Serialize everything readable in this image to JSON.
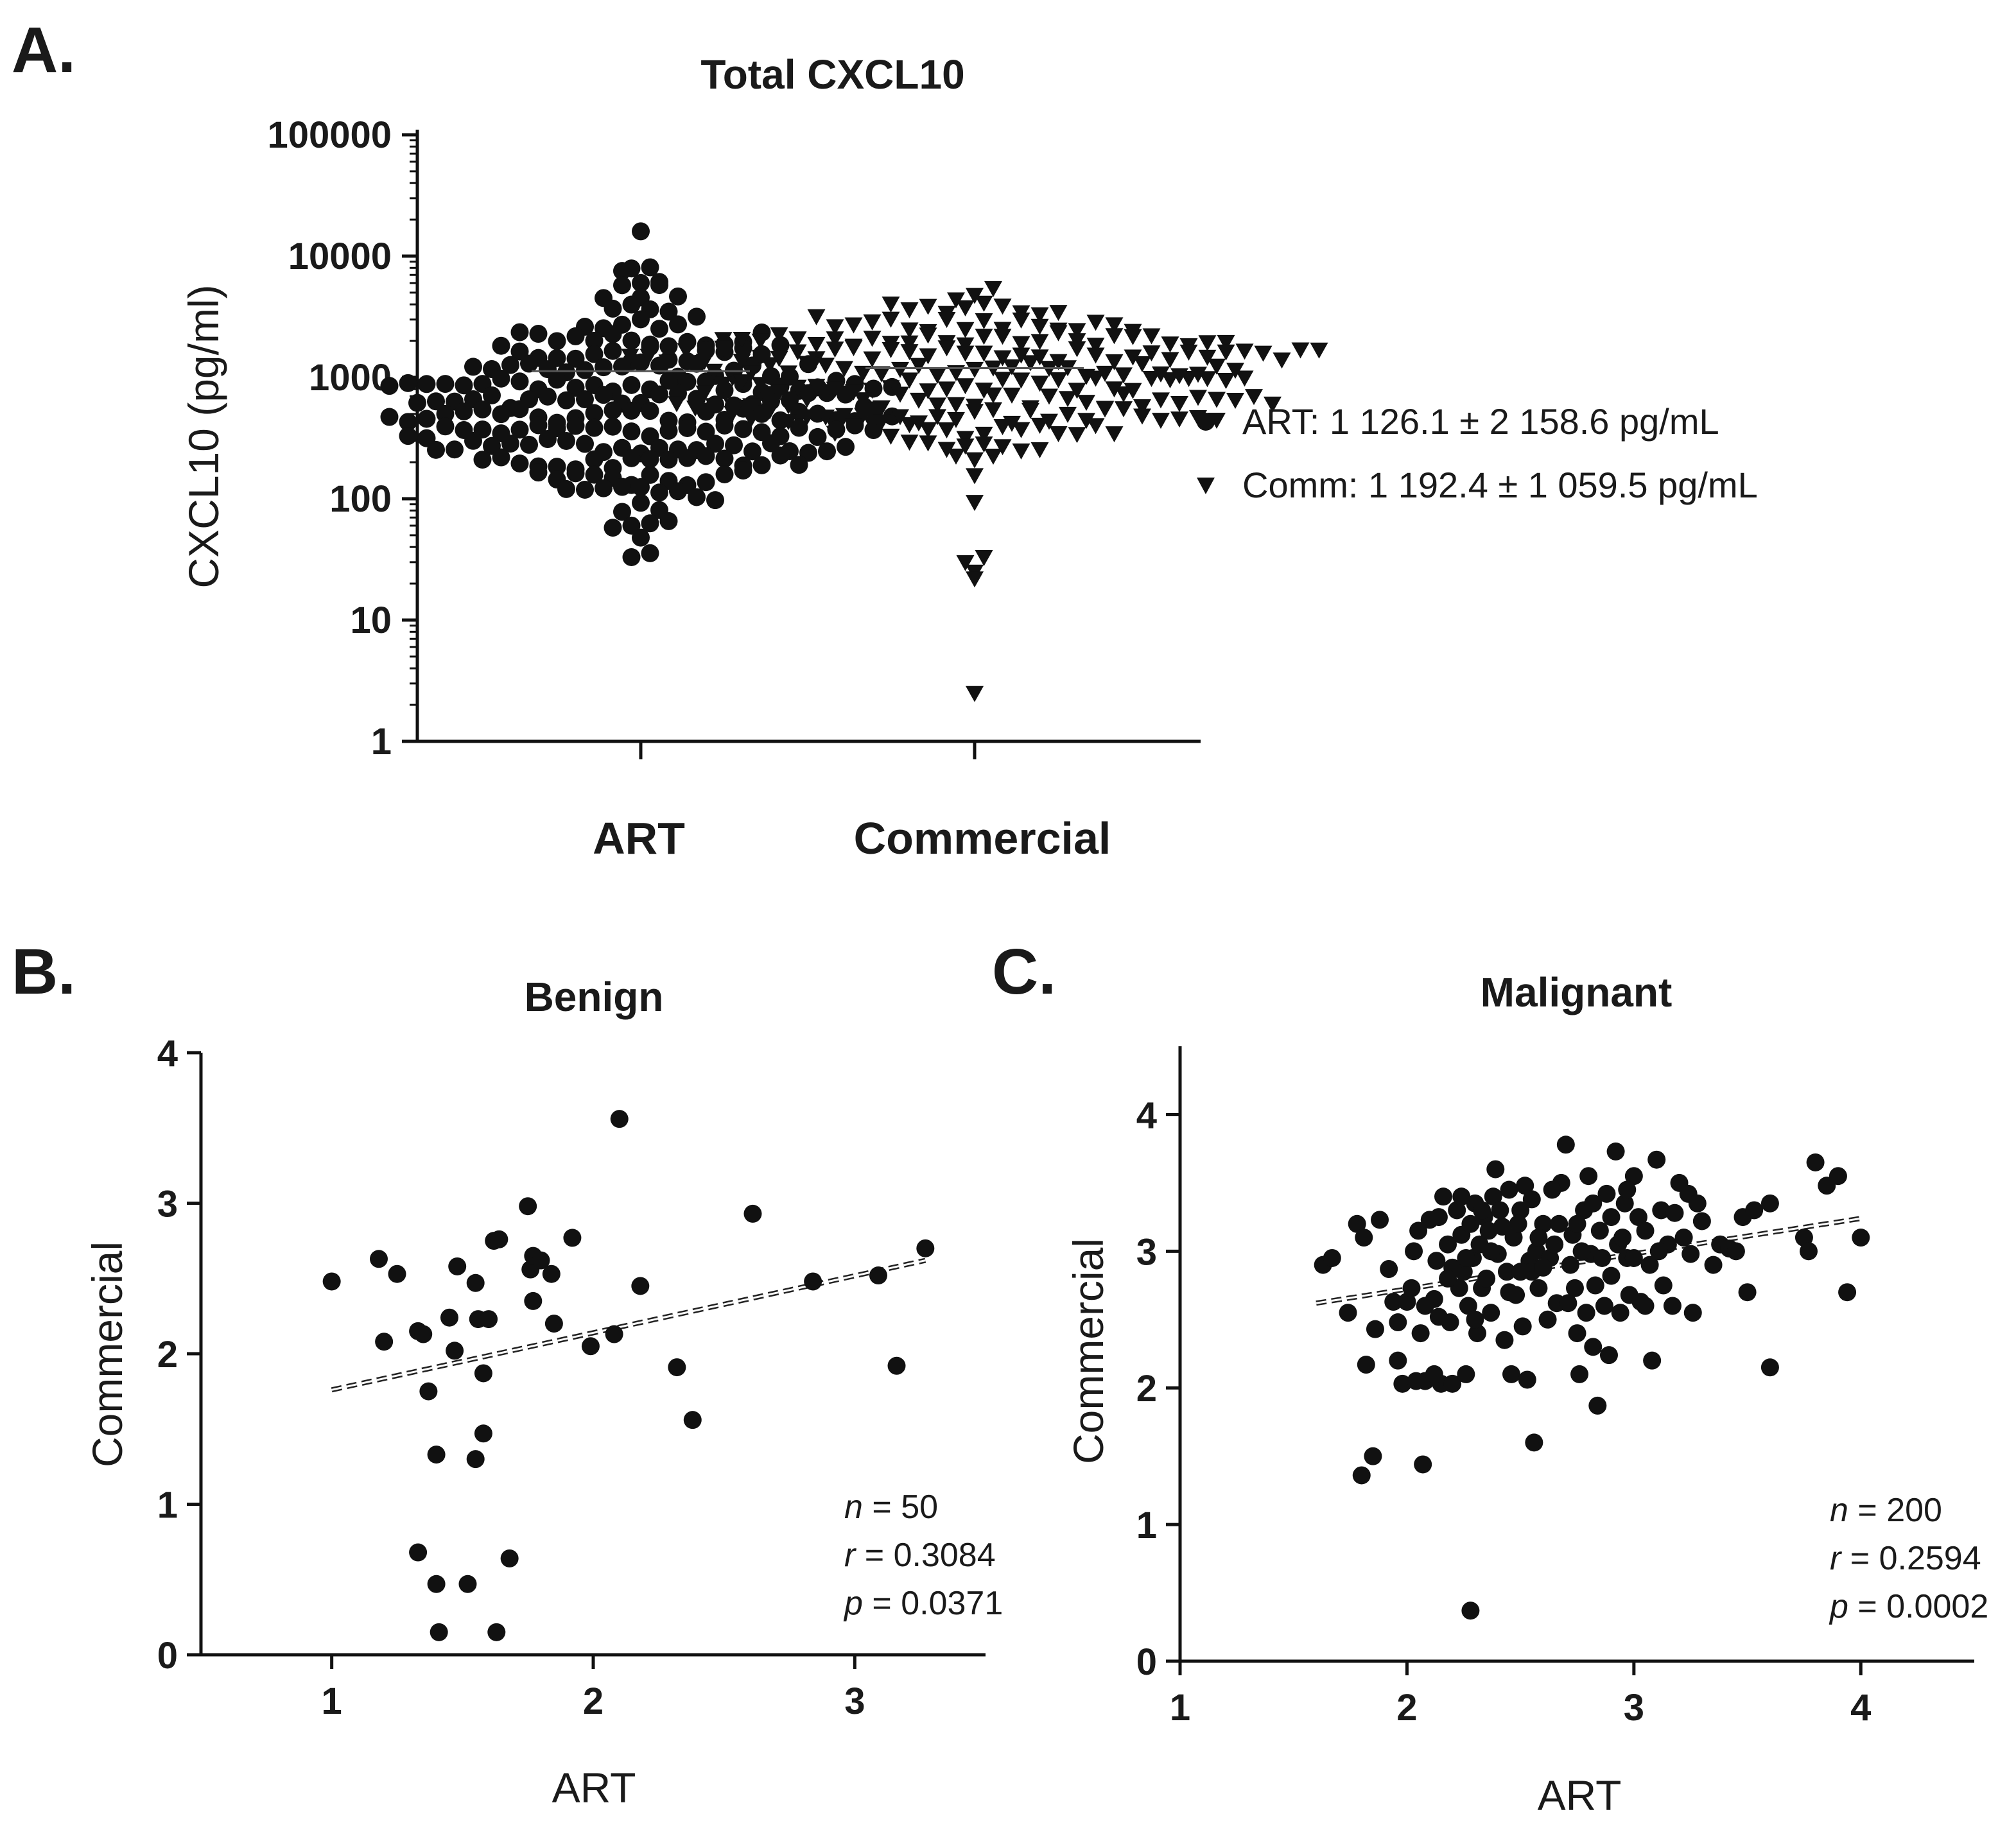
{
  "panels": {
    "a": {
      "label": "A."
    },
    "b": {
      "label": "B."
    },
    "c": {
      "label": "C."
    }
  },
  "legend": {
    "art_text": "ART: 1 126.1 ± 2 158.6 pg/mL",
    "comm_text": "Comm: 1 192.4 ± 1 059.5 pg/mL"
  },
  "stats": {
    "benign": {
      "n": "50",
      "r": "0.3084",
      "p": "0.0371"
    },
    "malignant": {
      "n": "200",
      "r": "0.2594",
      "p": "0.0002"
    }
  },
  "chart_data": [
    {
      "id": "A",
      "type": "scatter",
      "subtype": "dot-plot",
      "title": "Total CXCL10",
      "xlabel": "",
      "ylabel": "CXCL10 (pg/ml)",
      "yscale": "log",
      "ylim": [
        1,
        100000
      ],
      "yticks": [
        "1",
        "10",
        "100",
        "1000",
        "10000",
        "100000"
      ],
      "categories": [
        "ART",
        "Commercial"
      ],
      "series": [
        {
          "name": "ART",
          "marker": "circle",
          "n": 250,
          "mean": 1126.1,
          "sd": 2158.6,
          "min": 33,
          "max": 16000
        },
        {
          "name": "Commercial",
          "marker": "triangle-down",
          "n": 250,
          "mean": 1192.4,
          "sd": 1059.5,
          "min": 2.5,
          "max": 6000,
          "low_outliers": [
            2.5,
            22,
            25,
            30,
            33
          ]
        }
      ],
      "legend_position": "right"
    },
    {
      "id": "B",
      "type": "scatter",
      "title": "Benign",
      "xlabel": "ART",
      "ylabel": "Commercial",
      "xlim": [
        0.5,
        3.5
      ],
      "ylim": [
        0,
        4
      ],
      "xticks": [
        "1",
        "2",
        "3"
      ],
      "yticks": [
        "0",
        "1",
        "2",
        "3",
        "4"
      ],
      "trendline": {
        "x": [
          1.0,
          3.27
        ],
        "y": [
          1.76,
          2.62
        ]
      },
      "points": [
        [
          1.0,
          2.48
        ],
        [
          1.18,
          2.63
        ],
        [
          1.2,
          2.08
        ],
        [
          1.25,
          2.53
        ],
        [
          1.33,
          2.15
        ],
        [
          1.35,
          2.13
        ],
        [
          1.37,
          1.75
        ],
        [
          1.4,
          1.33
        ],
        [
          1.45,
          2.24
        ],
        [
          1.47,
          2.02
        ],
        [
          1.48,
          2.58
        ],
        [
          1.55,
          2.47
        ],
        [
          1.56,
          2.23
        ],
        [
          1.58,
          1.87
        ],
        [
          1.58,
          1.47
        ],
        [
          1.6,
          2.23
        ],
        [
          1.62,
          2.75
        ],
        [
          1.64,
          2.76
        ],
        [
          1.55,
          1.3
        ],
        [
          1.33,
          0.68
        ],
        [
          1.4,
          0.47
        ],
        [
          1.52,
          0.47
        ],
        [
          1.68,
          0.64
        ],
        [
          1.41,
          0.15
        ],
        [
          1.63,
          0.15
        ],
        [
          1.75,
          2.98
        ],
        [
          1.76,
          2.56
        ],
        [
          1.77,
          2.35
        ],
        [
          1.77,
          2.65
        ],
        [
          1.8,
          2.62
        ],
        [
          1.84,
          2.53
        ],
        [
          1.85,
          2.2
        ],
        [
          1.92,
          2.77
        ],
        [
          1.99,
          2.05
        ],
        [
          2.08,
          2.13
        ],
        [
          2.1,
          3.56
        ],
        [
          2.18,
          2.45
        ],
        [
          2.32,
          1.91
        ],
        [
          2.38,
          1.56
        ],
        [
          2.61,
          2.93
        ],
        [
          2.84,
          2.48
        ],
        [
          3.09,
          2.52
        ],
        [
          3.16,
          1.92
        ],
        [
          3.27,
          2.7
        ]
      ]
    },
    {
      "id": "C",
      "type": "scatter",
      "title": "Malignant",
      "xlabel": "ART",
      "ylabel": "Commercial",
      "xlim": [
        1,
        4.5
      ],
      "ylim": [
        0,
        4.5
      ],
      "xticks": [
        "1",
        "2",
        "3",
        "4"
      ],
      "yticks": [
        "0",
        "1",
        "2",
        "3",
        "4"
      ],
      "trendline": {
        "x": [
          1.6,
          4.0
        ],
        "y": [
          2.62,
          3.24
        ]
      },
      "points": [
        [
          1.63,
          2.9
        ],
        [
          1.67,
          2.95
        ],
        [
          1.74,
          2.55
        ],
        [
          1.78,
          3.2
        ],
        [
          1.81,
          3.1
        ],
        [
          1.82,
          2.17
        ],
        [
          1.86,
          2.43
        ],
        [
          1.88,
          3.23
        ],
        [
          1.8,
          1.36
        ],
        [
          1.85,
          1.5
        ],
        [
          1.92,
          2.87
        ],
        [
          1.94,
          2.63
        ],
        [
          1.96,
          2.48
        ],
        [
          1.98,
          2.03
        ],
        [
          2.0,
          2.63
        ],
        [
          2.02,
          2.73
        ],
        [
          2.03,
          3.0
        ],
        [
          2.04,
          2.05
        ],
        [
          2.05,
          3.15
        ],
        [
          2.06,
          2.4
        ],
        [
          2.07,
          1.44
        ],
        [
          2.08,
          2.05
        ],
        [
          2.1,
          3.23
        ],
        [
          2.12,
          2.65
        ],
        [
          2.13,
          2.93
        ],
        [
          2.14,
          2.52
        ],
        [
          2.15,
          2.03
        ],
        [
          2.16,
          3.4
        ],
        [
          2.18,
          3.05
        ],
        [
          2.19,
          2.48
        ],
        [
          2.2,
          2.03
        ],
        [
          2.22,
          3.3
        ],
        [
          2.23,
          2.73
        ],
        [
          2.24,
          3.12
        ],
        [
          2.25,
          2.85
        ],
        [
          2.26,
          2.1
        ],
        [
          2.27,
          2.6
        ],
        [
          2.28,
          3.2
        ],
        [
          2.29,
          2.95
        ],
        [
          2.3,
          3.35
        ],
        [
          2.31,
          2.4
        ],
        [
          2.32,
          3.05
        ],
        [
          2.33,
          2.73
        ],
        [
          2.34,
          3.25
        ],
        [
          2.35,
          2.8
        ],
        [
          2.36,
          3.15
        ],
        [
          2.37,
          2.55
        ],
        [
          2.38,
          3.4
        ],
        [
          2.39,
          3.6
        ],
        [
          2.4,
          2.98
        ],
        [
          2.42,
          3.18
        ],
        [
          2.44,
          2.85
        ],
        [
          2.45,
          3.45
        ],
        [
          2.46,
          2.1
        ],
        [
          2.47,
          3.1
        ],
        [
          2.48,
          2.68
        ],
        [
          2.5,
          3.3
        ],
        [
          2.51,
          2.45
        ],
        [
          2.52,
          3.48
        ],
        [
          2.53,
          2.06
        ],
        [
          2.54,
          2.93
        ],
        [
          2.55,
          3.38
        ],
        [
          2.56,
          1.6
        ],
        [
          2.57,
          3.0
        ],
        [
          2.58,
          2.73
        ],
        [
          2.6,
          3.2
        ],
        [
          2.62,
          2.5
        ],
        [
          2.63,
          2.95
        ],
        [
          2.65,
          3.05
        ],
        [
          2.66,
          2.62
        ],
        [
          2.68,
          3.5
        ],
        [
          2.7,
          3.78
        ],
        [
          2.72,
          2.9
        ],
        [
          2.73,
          3.12
        ],
        [
          2.74,
          2.73
        ],
        [
          2.75,
          2.4
        ],
        [
          2.76,
          2.1
        ],
        [
          2.78,
          3.3
        ],
        [
          2.79,
          2.55
        ],
        [
          2.8,
          3.55
        ],
        [
          2.81,
          2.98
        ],
        [
          2.82,
          2.3
        ],
        [
          2.83,
          2.75
        ],
        [
          2.84,
          1.87
        ],
        [
          2.85,
          3.15
        ],
        [
          2.87,
          2.6
        ],
        [
          2.88,
          3.42
        ],
        [
          2.89,
          2.24
        ],
        [
          2.9,
          2.82
        ],
        [
          2.92,
          3.73
        ],
        [
          2.93,
          3.05
        ],
        [
          2.94,
          2.55
        ],
        [
          2.96,
          3.35
        ],
        [
          2.97,
          2.95
        ],
        [
          2.98,
          2.68
        ],
        [
          3.0,
          3.55
        ],
        [
          3.02,
          3.25
        ],
        [
          3.03,
          2.63
        ],
        [
          3.05,
          3.15
        ],
        [
          3.07,
          2.9
        ],
        [
          3.08,
          2.2
        ],
        [
          3.1,
          3.67
        ],
        [
          3.12,
          3.3
        ],
        [
          3.13,
          2.75
        ],
        [
          3.15,
          3.05
        ],
        [
          3.17,
          2.6
        ],
        [
          3.2,
          3.5
        ],
        [
          3.22,
          3.1
        ],
        [
          3.24,
          3.42
        ],
        [
          3.26,
          2.55
        ],
        [
          3.28,
          3.35
        ],
        [
          3.3,
          3.22
        ],
        [
          3.35,
          2.9
        ],
        [
          3.38,
          3.05
        ],
        [
          3.42,
          3.02
        ],
        [
          3.45,
          3.0
        ],
        [
          3.48,
          3.25
        ],
        [
          3.5,
          2.7
        ],
        [
          3.53,
          3.3
        ],
        [
          3.6,
          3.35
        ],
        [
          3.6,
          2.15
        ],
        [
          3.75,
          3.1
        ],
        [
          3.77,
          3.0
        ],
        [
          3.8,
          3.65
        ],
        [
          3.85,
          3.48
        ],
        [
          3.9,
          3.55
        ],
        [
          3.94,
          2.7
        ],
        [
          4.0,
          3.1
        ],
        [
          2.28,
          0.37
        ],
        [
          1.96,
          2.2
        ],
        [
          2.08,
          2.6
        ],
        [
          2.12,
          2.1
        ],
        [
          2.2,
          2.88
        ],
        [
          2.26,
          2.95
        ],
        [
          2.3,
          2.5
        ],
        [
          2.37,
          3.0
        ],
        [
          2.43,
          2.35
        ],
        [
          2.49,
          3.2
        ],
        [
          2.55,
          2.85
        ],
        [
          2.6,
          2.88
        ],
        [
          2.67,
          3.2
        ],
        [
          2.71,
          2.62
        ],
        [
          2.77,
          3.0
        ],
        [
          2.86,
          2.95
        ],
        [
          2.9,
          3.25
        ],
        [
          2.95,
          3.1
        ],
        [
          3.0,
          2.95
        ],
        [
          3.05,
          2.6
        ],
        [
          3.11,
          3.0
        ],
        [
          3.18,
          3.28
        ],
        [
          3.25,
          2.98
        ],
        [
          2.14,
          3.25
        ],
        [
          2.18,
          2.8
        ],
        [
          2.24,
          3.4
        ],
        [
          2.33,
          3.3
        ],
        [
          2.41,
          3.3
        ],
        [
          2.45,
          2.7
        ],
        [
          2.5,
          2.85
        ],
        [
          2.58,
          3.1
        ],
        [
          2.64,
          3.45
        ],
        [
          2.75,
          3.2
        ],
        [
          2.82,
          3.35
        ],
        [
          2.97,
          3.45
        ]
      ]
    }
  ]
}
